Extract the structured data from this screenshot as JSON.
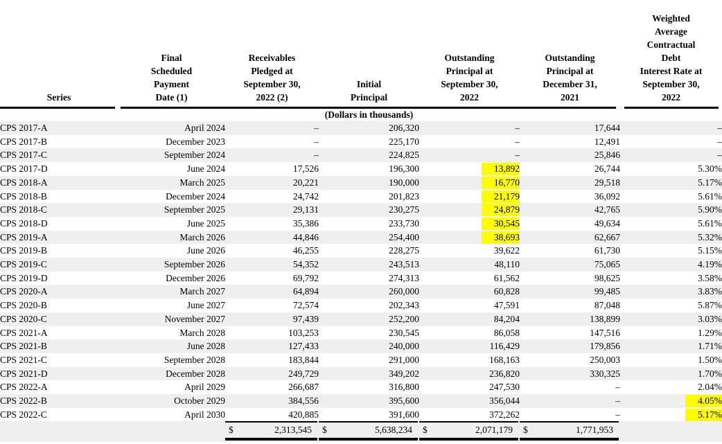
{
  "document": {
    "units_note": "(Dollars in thousands)",
    "dollar_sign": "$",
    "colors": {
      "stripe_background": "#efefef",
      "highlight": "#fdfd00",
      "text": "#000000",
      "page_background": "#ffffff"
    },
    "columns": [
      "Series",
      "Final\nScheduled\nPayment\nDate (1)",
      "Receivables\nPledged at\nSeptember 30,\n2022 (2)",
      "Initial\nPrincipal",
      "Outstanding\nPrincipal at\nSeptember 30,\n2022",
      "Outstanding\nPrincipal at\nDecember 31,\n2021",
      "Weighted\nAverage\nContractual\nDebt\nInterest Rate at\nSeptember 30,\n2022"
    ],
    "rows": [
      {
        "series": "CPS 2017-A",
        "final_payment_date": "April 2024",
        "receivables_pledged": "–",
        "initial_principal": "206,320",
        "outstanding_sep30_2022": "–",
        "outstanding_dec31_2021": "17,644",
        "interest_rate": "–",
        "highlighted": []
      },
      {
        "series": "CPS 2017-B",
        "final_payment_date": "December 2023",
        "receivables_pledged": "–",
        "initial_principal": "225,170",
        "outstanding_sep30_2022": "–",
        "outstanding_dec31_2021": "12,491",
        "interest_rate": "–",
        "highlighted": []
      },
      {
        "series": "CPS 2017-C",
        "final_payment_date": "September 2024",
        "receivables_pledged": "–",
        "initial_principal": "224,825",
        "outstanding_sep30_2022": "–",
        "outstanding_dec31_2021": "25,846",
        "interest_rate": "–",
        "highlighted": []
      },
      {
        "series": "CPS 2017-D",
        "final_payment_date": "June 2024",
        "receivables_pledged": "17,526",
        "initial_principal": "196,300",
        "outstanding_sep30_2022": "13,892",
        "outstanding_dec31_2021": "26,744",
        "interest_rate": "5.30%",
        "highlighted": [
          "outstanding_sep30_2022"
        ]
      },
      {
        "series": "CPS 2018-A",
        "final_payment_date": "March 2025",
        "receivables_pledged": "20,221",
        "initial_principal": "190,000",
        "outstanding_sep30_2022": "16,770",
        "outstanding_dec31_2021": "29,518",
        "interest_rate": "5.17%",
        "highlighted": [
          "outstanding_sep30_2022"
        ]
      },
      {
        "series": "CPS 2018-B",
        "final_payment_date": "December 2024",
        "receivables_pledged": "24,742",
        "initial_principal": "201,823",
        "outstanding_sep30_2022": "21,179",
        "outstanding_dec31_2021": "36,092",
        "interest_rate": "5.61%",
        "highlighted": [
          "outstanding_sep30_2022"
        ]
      },
      {
        "series": "CPS 2018-C",
        "final_payment_date": "September 2025",
        "receivables_pledged": "29,131",
        "initial_principal": "230,275",
        "outstanding_sep30_2022": "24,879",
        "outstanding_dec31_2021": "42,765",
        "interest_rate": "5.90%",
        "highlighted": [
          "outstanding_sep30_2022"
        ]
      },
      {
        "series": "CPS 2018-D",
        "final_payment_date": "June 2025",
        "receivables_pledged": "35,386",
        "initial_principal": "233,730",
        "outstanding_sep30_2022": "30,545",
        "outstanding_dec31_2021": "49,634",
        "interest_rate": "5.61%",
        "highlighted": [
          "outstanding_sep30_2022"
        ]
      },
      {
        "series": "CPS 2019-A",
        "final_payment_date": "March 2026",
        "receivables_pledged": "44,846",
        "initial_principal": "254,400",
        "outstanding_sep30_2022": "38,693",
        "outstanding_dec31_2021": "62,667",
        "interest_rate": "5.32%",
        "highlighted": [
          "outstanding_sep30_2022"
        ]
      },
      {
        "series": "CPS 2019-B",
        "final_payment_date": "June 2026",
        "receivables_pledged": "46,255",
        "initial_principal": "228,275",
        "outstanding_sep30_2022": "39,622",
        "outstanding_dec31_2021": "61,730",
        "interest_rate": "5.15%",
        "highlighted": []
      },
      {
        "series": "CPS 2019-C",
        "final_payment_date": "September 2026",
        "receivables_pledged": "54,352",
        "initial_principal": "243,513",
        "outstanding_sep30_2022": "48,110",
        "outstanding_dec31_2021": "75,065",
        "interest_rate": "4.19%",
        "highlighted": []
      },
      {
        "series": "CPS 2019-D",
        "final_payment_date": "December 2026",
        "receivables_pledged": "69,792",
        "initial_principal": "274,313",
        "outstanding_sep30_2022": "61,562",
        "outstanding_dec31_2021": "98,625",
        "interest_rate": "3.58%",
        "highlighted": []
      },
      {
        "series": "CPS 2020-A",
        "final_payment_date": "March 2027",
        "receivables_pledged": "64,894",
        "initial_principal": "260,000",
        "outstanding_sep30_2022": "60,828",
        "outstanding_dec31_2021": "99,485",
        "interest_rate": "3.83%",
        "highlighted": []
      },
      {
        "series": "CPS 2020-B",
        "final_payment_date": "June 2027",
        "receivables_pledged": "72,574",
        "initial_principal": "202,343",
        "outstanding_sep30_2022": "47,591",
        "outstanding_dec31_2021": "87,048",
        "interest_rate": "5.87%",
        "highlighted": []
      },
      {
        "series": "CPS 2020-C",
        "final_payment_date": "November 2027",
        "receivables_pledged": "97,439",
        "initial_principal": "252,200",
        "outstanding_sep30_2022": "84,204",
        "outstanding_dec31_2021": "138,899",
        "interest_rate": "3.03%",
        "highlighted": []
      },
      {
        "series": "CPS 2021-A",
        "final_payment_date": "March 2028",
        "receivables_pledged": "103,253",
        "initial_principal": "230,545",
        "outstanding_sep30_2022": "86,058",
        "outstanding_dec31_2021": "147,516",
        "interest_rate": "1.29%",
        "highlighted": []
      },
      {
        "series": "CPS 2021-B",
        "final_payment_date": "June 2028",
        "receivables_pledged": "127,433",
        "initial_principal": "240,000",
        "outstanding_sep30_2022": "116,429",
        "outstanding_dec31_2021": "179,856",
        "interest_rate": "1.71%",
        "highlighted": []
      },
      {
        "series": "CPS 2021-C",
        "final_payment_date": "September 2028",
        "receivables_pledged": "183,844",
        "initial_principal": "291,000",
        "outstanding_sep30_2022": "168,163",
        "outstanding_dec31_2021": "250,003",
        "interest_rate": "1.50%",
        "highlighted": []
      },
      {
        "series": "CPS 2021-D",
        "final_payment_date": "December 2028",
        "receivables_pledged": "249,729",
        "initial_principal": "349,202",
        "outstanding_sep30_2022": "236,820",
        "outstanding_dec31_2021": "330,325",
        "interest_rate": "1.70%",
        "highlighted": []
      },
      {
        "series": "CPS 2022-A",
        "final_payment_date": "April 2029",
        "receivables_pledged": "266,687",
        "initial_principal": "316,800",
        "outstanding_sep30_2022": "247,530",
        "outstanding_dec31_2021": "–",
        "interest_rate": "2.04%",
        "highlighted": []
      },
      {
        "series": "CPS 2022-B",
        "final_payment_date": "October 2029",
        "receivables_pledged": "384,556",
        "initial_principal": "395,600",
        "outstanding_sep30_2022": "356,044",
        "outstanding_dec31_2021": "–",
        "interest_rate": "4.05%",
        "highlighted": [
          "interest_rate"
        ]
      },
      {
        "series": "CPS 2022-C",
        "final_payment_date": "April 2030",
        "receivables_pledged": "420,885",
        "initial_principal": "391,600",
        "outstanding_sep30_2022": "372,262",
        "outstanding_dec31_2021": "–",
        "interest_rate": "5.17%",
        "highlighted": [
          "interest_rate"
        ]
      }
    ],
    "totals": {
      "receivables_pledged": "2,313,545",
      "initial_principal": "5,638,234",
      "outstanding_sep30_2022": "2,071,179",
      "outstanding_dec31_2021": "1,771,953"
    }
  }
}
